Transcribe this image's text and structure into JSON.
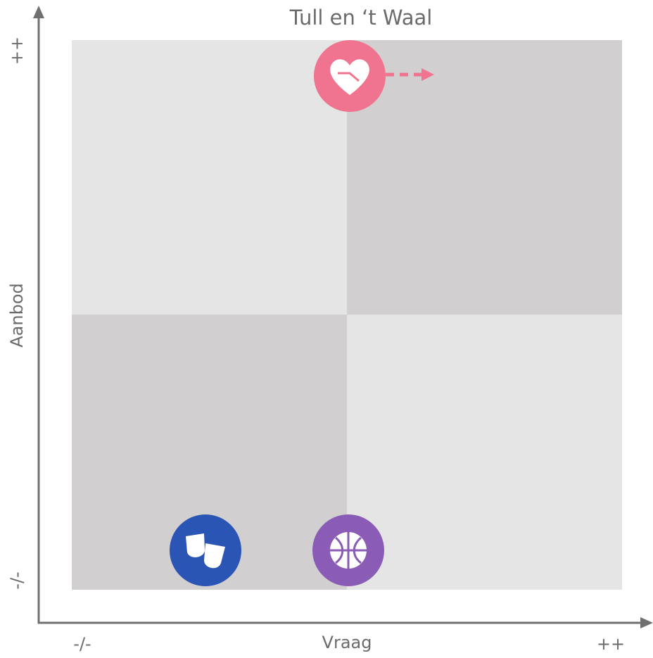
{
  "title": "Tull en ‘t Waal",
  "axes": {
    "y": {
      "label": "Aanbod",
      "top": "++",
      "bottom": "-/-"
    },
    "x": {
      "label": "Vraag",
      "left": "-/-",
      "right": "++"
    }
  }
}
